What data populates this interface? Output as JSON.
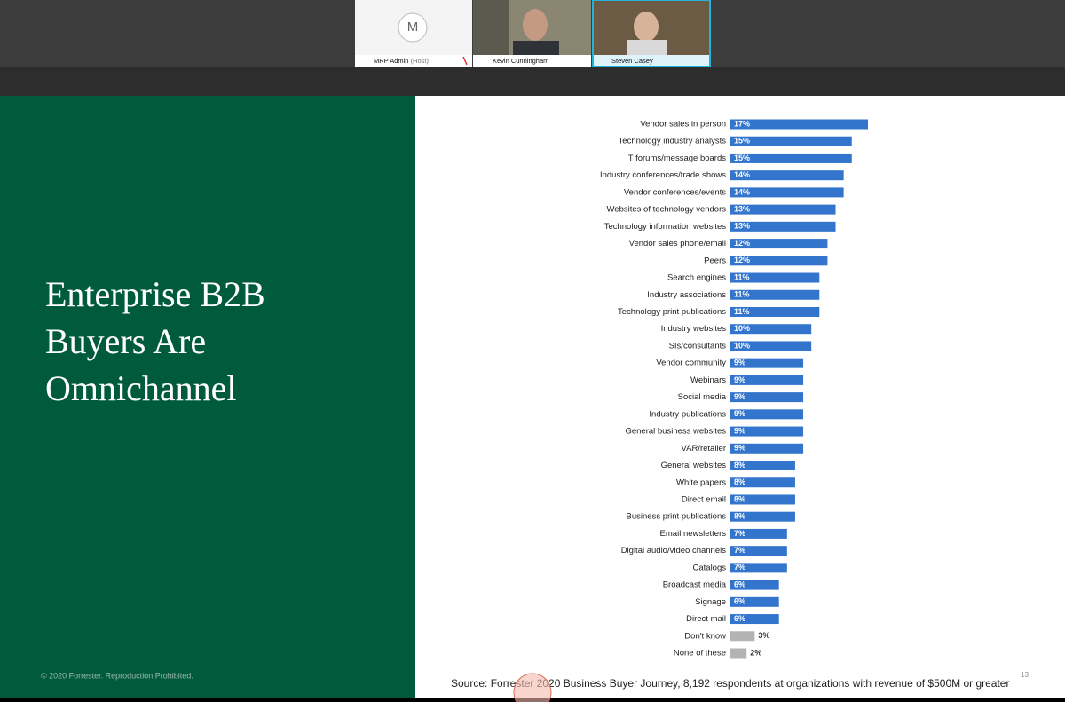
{
  "participants": [
    {
      "avatar": "M",
      "name": "MRP Admin",
      "role": "(Host)"
    },
    {
      "name": "Kevin Cunningham"
    },
    {
      "name": "Steven Casey"
    }
  ],
  "slide": {
    "title_lines": [
      "Enterprise B2B",
      "Buyers Are",
      "Omnichannel"
    ],
    "copyright": "© 2020 Forrester. Reproduction Prohibited.",
    "page_number": "13",
    "source": "Source: Forrester 2020 Business Buyer Journey, 8,192 respondents at organizations with revenue  of $500M or greater"
  },
  "chart_data": {
    "type": "bar",
    "orientation": "horizontal",
    "categories": [
      "Vendor sales in person",
      "Technology industry analysts",
      "IT forums/message boards",
      "Industry conferences/trade shows",
      "Vendor conferences/events",
      "Websites of technology vendors",
      "Technology information websites",
      "Vendor sales phone/email",
      "Peers",
      "Search engines",
      "Industry associations",
      "Technology print publications",
      "Industry websites",
      "SIs/consultants",
      "Vendor community",
      "Webinars",
      "Social media",
      "Industry publications",
      "General business websites",
      "VAR/retailer",
      "General websites",
      "White papers",
      "Direct email",
      "Business print publications",
      "Email newsletters",
      "Digital audio/video channels",
      "Catalogs",
      "Broadcast media",
      "Signage",
      "Direct mail",
      "Don't know",
      "None of these"
    ],
    "values": [
      17,
      15,
      15,
      14,
      14,
      13,
      13,
      12,
      12,
      11,
      11,
      11,
      10,
      10,
      9,
      9,
      9,
      9,
      9,
      9,
      8,
      8,
      8,
      8,
      7,
      7,
      7,
      6,
      6,
      6,
      3,
      2
    ],
    "value_labels": [
      "17%",
      "15%",
      "15%",
      "14%",
      "14%",
      "13%",
      "13%",
      "12%",
      "12%",
      "11%",
      "11%",
      "11%",
      "10%",
      "10%",
      "9%",
      "9%",
      "9%",
      "9%",
      "9%",
      "9%",
      "8%",
      "8%",
      "8%",
      "8%",
      "7%",
      "7%",
      "7%",
      "6%",
      "6%",
      "6%",
      "3%",
      "2%"
    ],
    "colors": [
      "#3375cc",
      "#3375cc",
      "#3375cc",
      "#3375cc",
      "#3375cc",
      "#3375cc",
      "#3375cc",
      "#3375cc",
      "#3375cc",
      "#3375cc",
      "#3375cc",
      "#3375cc",
      "#3375cc",
      "#3375cc",
      "#3375cc",
      "#3375cc",
      "#3375cc",
      "#3375cc",
      "#3375cc",
      "#3375cc",
      "#3375cc",
      "#3375cc",
      "#3375cc",
      "#3375cc",
      "#3375cc",
      "#3375cc",
      "#3375cc",
      "#3375cc",
      "#3375cc",
      "#3375cc",
      "#b3b3b3",
      "#b3b3b3"
    ]
  }
}
